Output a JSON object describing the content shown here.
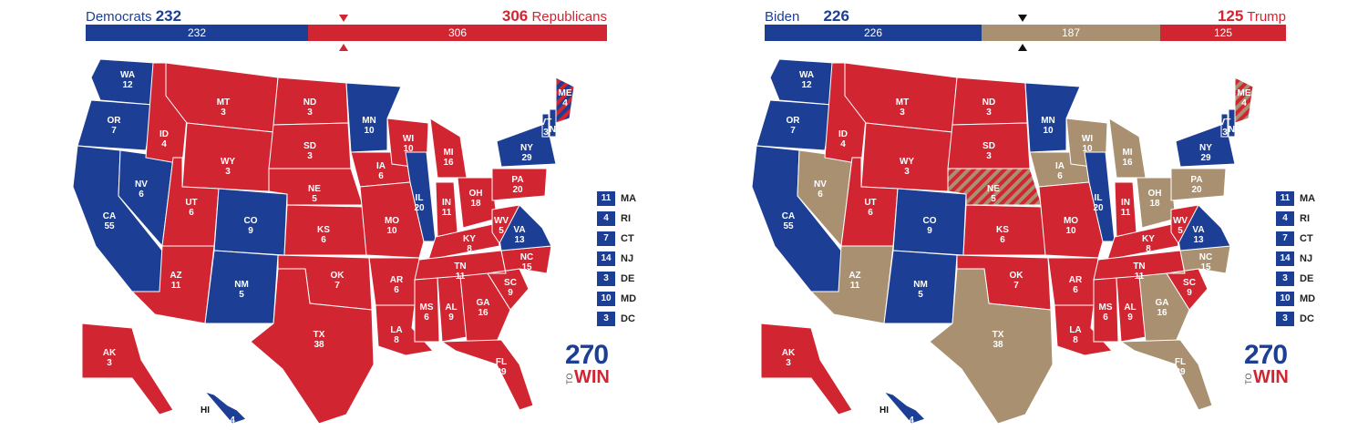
{
  "colors": {
    "dem": "#1c3f95",
    "rep": "#d12532",
    "tossup": "#a89070"
  },
  "left": {
    "header": {
      "dem_label": "Democrats",
      "dem_total": "232",
      "rep_total": "306",
      "rep_label": "Republicans"
    },
    "bar": {
      "dem": "232",
      "rep": "306"
    },
    "map": [
      {
        "abbr": "WA",
        "ev": "12",
        "party": "dem"
      },
      {
        "abbr": "OR",
        "ev": "7",
        "party": "dem"
      },
      {
        "abbr": "CA",
        "ev": "55",
        "party": "dem"
      },
      {
        "abbr": "NV",
        "ev": "6",
        "party": "dem"
      },
      {
        "abbr": "ID",
        "ev": "4",
        "party": "rep"
      },
      {
        "abbr": "MT",
        "ev": "3",
        "party": "rep"
      },
      {
        "abbr": "WY",
        "ev": "3",
        "party": "rep"
      },
      {
        "abbr": "UT",
        "ev": "6",
        "party": "rep"
      },
      {
        "abbr": "AZ",
        "ev": "11",
        "party": "rep"
      },
      {
        "abbr": "CO",
        "ev": "9",
        "party": "dem"
      },
      {
        "abbr": "NM",
        "ev": "5",
        "party": "dem"
      },
      {
        "abbr": "ND",
        "ev": "3",
        "party": "rep"
      },
      {
        "abbr": "SD",
        "ev": "3",
        "party": "rep"
      },
      {
        "abbr": "NE",
        "ev": "5",
        "party": "rep"
      },
      {
        "abbr": "KS",
        "ev": "6",
        "party": "rep"
      },
      {
        "abbr": "OK",
        "ev": "7",
        "party": "rep"
      },
      {
        "abbr": "TX",
        "ev": "38",
        "party": "rep"
      },
      {
        "abbr": "MN",
        "ev": "10",
        "party": "dem"
      },
      {
        "abbr": "IA",
        "ev": "6",
        "party": "rep"
      },
      {
        "abbr": "MO",
        "ev": "10",
        "party": "rep"
      },
      {
        "abbr": "AR",
        "ev": "6",
        "party": "rep"
      },
      {
        "abbr": "LA",
        "ev": "8",
        "party": "rep"
      },
      {
        "abbr": "WI",
        "ev": "10",
        "party": "rep"
      },
      {
        "abbr": "IL",
        "ev": "20",
        "party": "dem"
      },
      {
        "abbr": "MI",
        "ev": "16",
        "party": "rep"
      },
      {
        "abbr": "IN",
        "ev": "11",
        "party": "rep"
      },
      {
        "abbr": "OH",
        "ev": "18",
        "party": "rep"
      },
      {
        "abbr": "KY",
        "ev": "8",
        "party": "rep"
      },
      {
        "abbr": "TN",
        "ev": "11",
        "party": "rep"
      },
      {
        "abbr": "MS",
        "ev": "6",
        "party": "rep"
      },
      {
        "abbr": "AL",
        "ev": "9",
        "party": "rep"
      },
      {
        "abbr": "GA",
        "ev": "16",
        "party": "rep"
      },
      {
        "abbr": "FL",
        "ev": "29",
        "party": "rep"
      },
      {
        "abbr": "SC",
        "ev": "9",
        "party": "rep"
      },
      {
        "abbr": "NC",
        "ev": "15",
        "party": "rep"
      },
      {
        "abbr": "VA",
        "ev": "13",
        "party": "dem"
      },
      {
        "abbr": "WV",
        "ev": "5",
        "party": "rep"
      },
      {
        "abbr": "PA",
        "ev": "20",
        "party": "rep"
      },
      {
        "abbr": "NY",
        "ev": "29",
        "party": "dem"
      },
      {
        "abbr": "VT",
        "ev": "3",
        "party": "dem"
      },
      {
        "abbr": "NH",
        "ev": "4",
        "party": "dem"
      },
      {
        "abbr": "ME",
        "ev": "4",
        "party": "split"
      },
      {
        "abbr": "AK",
        "ev": "3",
        "party": "rep"
      },
      {
        "abbr": "HI",
        "ev": "4",
        "party": "dem"
      }
    ],
    "small_states": [
      {
        "ev": "11",
        "abbr": "MA"
      },
      {
        "ev": "4",
        "abbr": "RI"
      },
      {
        "ev": "7",
        "abbr": "CT"
      },
      {
        "ev": "14",
        "abbr": "NJ"
      },
      {
        "ev": "3",
        "abbr": "DE"
      },
      {
        "ev": "10",
        "abbr": "MD"
      },
      {
        "ev": "3",
        "abbr": "DC"
      }
    ]
  },
  "right": {
    "header": {
      "dem_label": "Biden",
      "dem_total": "226",
      "rep_total": "125",
      "rep_label": "Trump"
    },
    "bar": {
      "dem": "226",
      "tossup": "187",
      "rep": "125"
    },
    "map": [
      {
        "abbr": "WA",
        "ev": "12",
        "party": "dem"
      },
      {
        "abbr": "OR",
        "ev": "7",
        "party": "dem"
      },
      {
        "abbr": "CA",
        "ev": "55",
        "party": "dem"
      },
      {
        "abbr": "NV",
        "ev": "6",
        "party": "tossup"
      },
      {
        "abbr": "ID",
        "ev": "4",
        "party": "rep"
      },
      {
        "abbr": "MT",
        "ev": "3",
        "party": "rep"
      },
      {
        "abbr": "WY",
        "ev": "3",
        "party": "rep"
      },
      {
        "abbr": "UT",
        "ev": "6",
        "party": "rep"
      },
      {
        "abbr": "AZ",
        "ev": "11",
        "party": "tossup"
      },
      {
        "abbr": "CO",
        "ev": "9",
        "party": "dem"
      },
      {
        "abbr": "NM",
        "ev": "5",
        "party": "dem"
      },
      {
        "abbr": "ND",
        "ev": "3",
        "party": "rep"
      },
      {
        "abbr": "SD",
        "ev": "3",
        "party": "rep"
      },
      {
        "abbr": "NE",
        "ev": "5",
        "party": "split"
      },
      {
        "abbr": "KS",
        "ev": "6",
        "party": "rep"
      },
      {
        "abbr": "OK",
        "ev": "7",
        "party": "rep"
      },
      {
        "abbr": "TX",
        "ev": "38",
        "party": "tossup"
      },
      {
        "abbr": "MN",
        "ev": "10",
        "party": "dem"
      },
      {
        "abbr": "IA",
        "ev": "6",
        "party": "tossup"
      },
      {
        "abbr": "MO",
        "ev": "10",
        "party": "rep"
      },
      {
        "abbr": "AR",
        "ev": "6",
        "party": "rep"
      },
      {
        "abbr": "LA",
        "ev": "8",
        "party": "rep"
      },
      {
        "abbr": "WI",
        "ev": "10",
        "party": "tossup"
      },
      {
        "abbr": "IL",
        "ev": "20",
        "party": "dem"
      },
      {
        "abbr": "MI",
        "ev": "16",
        "party": "tossup"
      },
      {
        "abbr": "IN",
        "ev": "11",
        "party": "rep"
      },
      {
        "abbr": "OH",
        "ev": "18",
        "party": "tossup"
      },
      {
        "abbr": "KY",
        "ev": "8",
        "party": "rep"
      },
      {
        "abbr": "TN",
        "ev": "11",
        "party": "rep"
      },
      {
        "abbr": "MS",
        "ev": "6",
        "party": "rep"
      },
      {
        "abbr": "AL",
        "ev": "9",
        "party": "rep"
      },
      {
        "abbr": "GA",
        "ev": "16",
        "party": "tossup"
      },
      {
        "abbr": "FL",
        "ev": "29",
        "party": "tossup"
      },
      {
        "abbr": "SC",
        "ev": "9",
        "party": "rep"
      },
      {
        "abbr": "NC",
        "ev": "15",
        "party": "tossup"
      },
      {
        "abbr": "VA",
        "ev": "13",
        "party": "dem"
      },
      {
        "abbr": "WV",
        "ev": "5",
        "party": "rep"
      },
      {
        "abbr": "PA",
        "ev": "20",
        "party": "tossup"
      },
      {
        "abbr": "NY",
        "ev": "29",
        "party": "dem"
      },
      {
        "abbr": "VT",
        "ev": "3",
        "party": "dem"
      },
      {
        "abbr": "NH",
        "ev": "4",
        "party": "dem"
      },
      {
        "abbr": "ME",
        "ev": "4",
        "party": "split"
      },
      {
        "abbr": "AK",
        "ev": "3",
        "party": "rep"
      },
      {
        "abbr": "HI",
        "ev": "4",
        "party": "dem"
      }
    ],
    "small_states": [
      {
        "ev": "11",
        "abbr": "MA"
      },
      {
        "ev": "4",
        "abbr": "RI"
      },
      {
        "ev": "7",
        "abbr": "CT"
      },
      {
        "ev": "14",
        "abbr": "NJ"
      },
      {
        "ev": "3",
        "abbr": "DE"
      },
      {
        "ev": "10",
        "abbr": "MD"
      },
      {
        "ev": "3",
        "abbr": "DC"
      }
    ]
  },
  "logo": {
    "number": "270",
    "to": "TO",
    "win": "WIN"
  }
}
